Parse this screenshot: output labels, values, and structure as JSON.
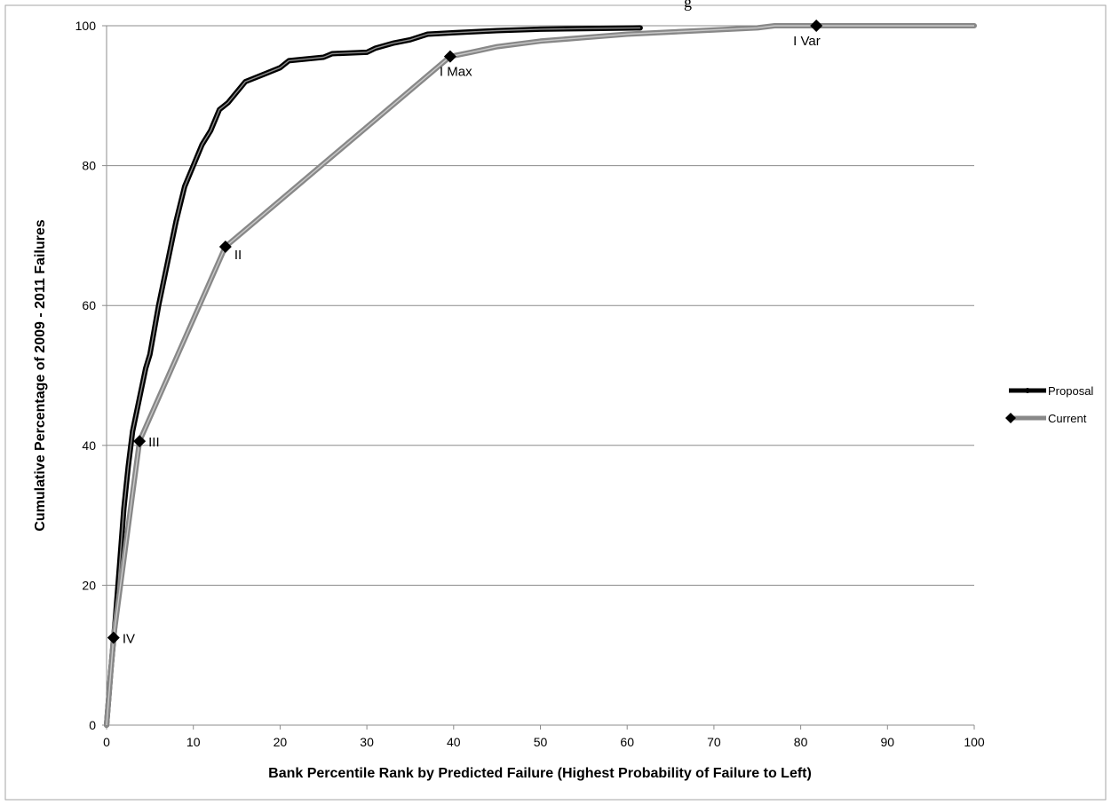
{
  "chart_data": {
    "type": "line",
    "title_fragment": "g",
    "xlabel": "Bank Percentile Rank by Predicted Failure (Highest Probability of Failure to Left)",
    "ylabel": "Cumulative Percentage of 2009 - 2011 Failures",
    "xlim": [
      0,
      100
    ],
    "ylim": [
      0,
      100
    ],
    "xticks": [
      0,
      10,
      20,
      30,
      40,
      50,
      60,
      70,
      80,
      90,
      100
    ],
    "yticks": [
      0,
      20,
      40,
      60,
      80,
      100
    ],
    "xtick_labels": [
      "0",
      "10",
      "20",
      "30",
      "40",
      "50",
      "60",
      "70",
      "80",
      "90",
      "100"
    ],
    "ytick_labels": [
      "0",
      "20",
      "40",
      "60",
      "80",
      "100"
    ],
    "grid": "horizontal",
    "legend_position": "right",
    "series": [
      {
        "name": "Proposal",
        "color": "#000000",
        "points": [
          [
            0,
            0
          ],
          [
            0.5,
            8
          ],
          [
            1,
            15
          ],
          [
            1.5,
            23
          ],
          [
            2,
            31
          ],
          [
            2.5,
            37
          ],
          [
            3,
            42
          ],
          [
            3.5,
            45
          ],
          [
            4,
            48
          ],
          [
            4.5,
            51
          ],
          [
            5,
            53
          ],
          [
            6,
            60
          ],
          [
            7,
            66
          ],
          [
            8,
            72
          ],
          [
            9,
            77
          ],
          [
            10,
            80
          ],
          [
            11,
            83
          ],
          [
            12,
            85
          ],
          [
            13,
            88
          ],
          [
            14,
            89
          ],
          [
            15,
            90.5
          ],
          [
            16,
            92
          ],
          [
            18,
            93
          ],
          [
            20,
            94
          ],
          [
            21,
            95
          ],
          [
            25,
            95.5
          ],
          [
            26,
            96
          ],
          [
            30,
            96.2
          ],
          [
            31,
            96.8
          ],
          [
            33,
            97.5
          ],
          [
            35,
            98
          ],
          [
            37,
            98.8
          ],
          [
            40,
            99
          ],
          [
            45,
            99.3
          ],
          [
            50,
            99.5
          ],
          [
            55,
            99.6
          ],
          [
            61.5,
            99.7
          ]
        ]
      },
      {
        "name": "Current",
        "color": "#888888",
        "points": [
          [
            0,
            0
          ],
          [
            0.8,
            12.5
          ],
          [
            3.8,
            40.6
          ],
          [
            13.7,
            68.4
          ],
          [
            39.6,
            95.6
          ],
          [
            42,
            96.2
          ],
          [
            45,
            97
          ],
          [
            50,
            97.8
          ],
          [
            55,
            98.3
          ],
          [
            60,
            98.8
          ],
          [
            65,
            99.1
          ],
          [
            70,
            99.4
          ],
          [
            75,
            99.7
          ],
          [
            77,
            100
          ],
          [
            81.8,
            100
          ],
          [
            90,
            100
          ],
          [
            100,
            100
          ]
        ]
      }
    ],
    "annotations": [
      {
        "label": "IV",
        "x": 0.8,
        "y": 12.5
      },
      {
        "label": "III",
        "x": 3.8,
        "y": 40.6
      },
      {
        "label": "II",
        "x": 13.7,
        "y": 68.4
      },
      {
        "label": "I Max",
        "x": 39.6,
        "y": 95.6
      },
      {
        "label": "I Var",
        "x": 81.8,
        "y": 100
      }
    ]
  }
}
